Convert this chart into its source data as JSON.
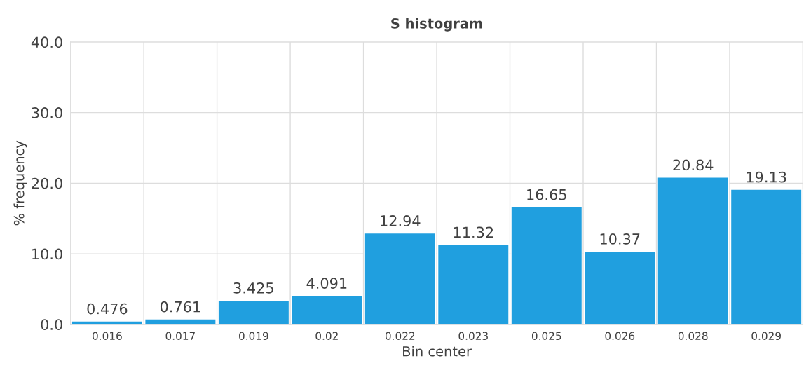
{
  "chart_data": {
    "type": "bar",
    "title": "S histogram",
    "xlabel": "Bin center",
    "ylabel": "% frequency",
    "categories": [
      "0.016",
      "0.017",
      "0.019",
      "0.02",
      "0.022",
      "0.023",
      "0.025",
      "0.026",
      "0.028",
      "0.029"
    ],
    "values": [
      0.476,
      0.761,
      3.425,
      4.091,
      12.94,
      11.32,
      16.65,
      10.37,
      20.84,
      19.13
    ],
    "color": "#209fdf",
    "ylim": [
      0,
      40
    ],
    "yticks": [
      {
        "value": 0,
        "label": "0.0"
      },
      {
        "value": 10,
        "label": "10.0"
      },
      {
        "value": 20,
        "label": "20.0"
      },
      {
        "value": 30,
        "label": "30.0"
      },
      {
        "value": 40,
        "label": "40.0"
      }
    ],
    "grid": true,
    "data_labels": true
  }
}
